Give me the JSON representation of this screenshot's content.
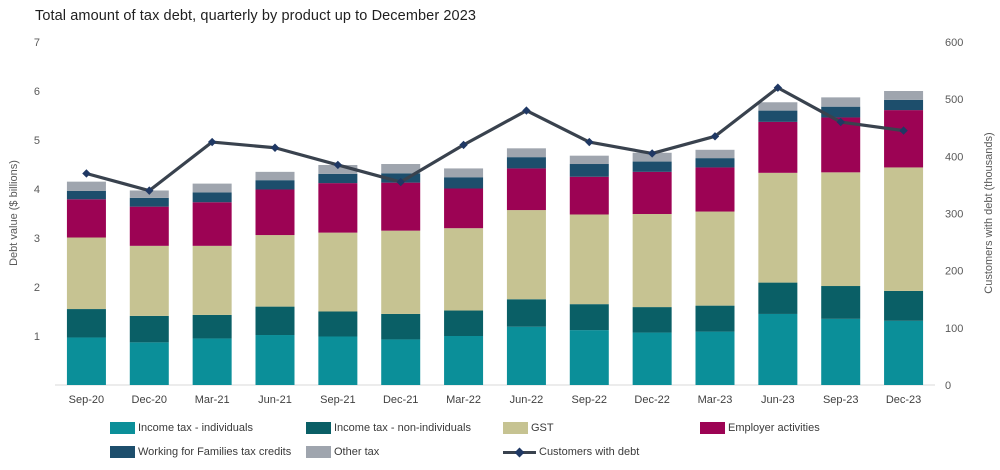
{
  "title": "Total amount of tax debt, quarterly by product up to December 2023",
  "chart_data": {
    "type": "combo: stacked-bar + line",
    "categories": [
      "Sep-20",
      "Dec-20",
      "Mar-21",
      "Jun-21",
      "Sep-21",
      "Dec-21",
      "Mar-22",
      "Jun-22",
      "Sep-22",
      "Dec-22",
      "Mar-23",
      "Jun-23",
      "Sep-23",
      "Dec-23"
    ],
    "series": [
      {
        "name": "Income tax - individuals",
        "color": "#0B8F99",
        "values": [
          0.97,
          0.87,
          0.95,
          1.02,
          0.99,
          0.93,
          1.0,
          1.19,
          1.12,
          1.07,
          1.09,
          1.45,
          1.35,
          1.31
        ]
      },
      {
        "name": "Income tax - non-individuals",
        "color": "#0A5F66",
        "values": [
          0.58,
          0.54,
          0.48,
          0.58,
          0.51,
          0.52,
          0.52,
          0.56,
          0.53,
          0.52,
          0.53,
          0.64,
          0.67,
          0.61
        ]
      },
      {
        "name": "GST",
        "color": "#C6C392",
        "values": [
          1.46,
          1.43,
          1.41,
          1.46,
          1.61,
          1.7,
          1.68,
          1.82,
          1.83,
          1.9,
          1.92,
          2.24,
          2.32,
          2.52
        ]
      },
      {
        "name": "Employer activities",
        "color": "#9C0354",
        "values": [
          0.78,
          0.8,
          0.89,
          0.93,
          1.01,
          0.98,
          0.81,
          0.85,
          0.77,
          0.86,
          0.9,
          1.04,
          1.12,
          1.17
        ]
      },
      {
        "name": "Working for Families tax credits",
        "color": "#1D4E6C",
        "values": [
          0.17,
          0.18,
          0.2,
          0.19,
          0.19,
          0.19,
          0.23,
          0.23,
          0.26,
          0.21,
          0.19,
          0.23,
          0.22,
          0.21
        ]
      },
      {
        "name": "Other tax",
        "color": "#9FA5AE",
        "values": [
          0.19,
          0.15,
          0.18,
          0.17,
          0.18,
          0.19,
          0.18,
          0.18,
          0.17,
          0.18,
          0.17,
          0.17,
          0.19,
          0.18
        ]
      }
    ],
    "line_series": {
      "name": "Customers with debt",
      "color": "#39424E",
      "marker_color": "#1F3864",
      "values": [
        370,
        340,
        425,
        415,
        385,
        355,
        420,
        480,
        425,
        405,
        435,
        520,
        460,
        445
      ]
    },
    "left_axis": {
      "label": "Debt value ($ billions)",
      "min": 0,
      "max": 7,
      "tick_step": 1
    },
    "right_axis": {
      "label": "Customers with debt (thousands)",
      "min": 0,
      "max": 600,
      "tick_step": 100
    },
    "grid": false,
    "legend_position": "bottom",
    "colors": {
      "axis_text": "#595959",
      "category_text": "#404040",
      "baseline": "#d9d9d9",
      "title_text": "#1f1f1f"
    }
  }
}
